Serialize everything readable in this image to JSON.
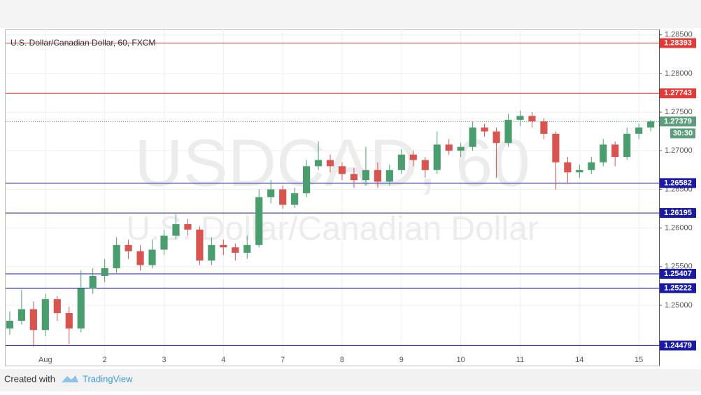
{
  "chart_data": {
    "type": "candlestick",
    "title": "U.S. Dollar/Canadian Dollar, 60, FXCM",
    "watermark": "USDCAD, 60",
    "watermark_subtitle": "U.S. Dollar/Canadian Dollar",
    "footer": {
      "prefix": "Created with",
      "brand": "TradingView"
    },
    "up_color": "#4a9e6e",
    "down_color": "#d9534f",
    "xlim": [
      -0.67,
      10.34
    ],
    "xticks": [
      {
        "value": 0,
        "label": "Aug"
      },
      {
        "value": 1,
        "label": "2"
      },
      {
        "value": 2,
        "label": "3"
      },
      {
        "value": 3,
        "label": "4"
      },
      {
        "value": 4,
        "label": "7"
      },
      {
        "value": 5,
        "label": "8"
      },
      {
        "value": 6,
        "label": "9"
      },
      {
        "value": 7,
        "label": "10"
      },
      {
        "value": 8,
        "label": "11"
      },
      {
        "value": 9,
        "label": "14"
      },
      {
        "value": 10,
        "label": "15"
      }
    ],
    "ylim": [
      1.2422,
      1.2857
    ],
    "yticks": [
      {
        "value": 1.285,
        "label": "1.28500"
      },
      {
        "value": 1.28,
        "label": "1.28000"
      },
      {
        "value": 1.275,
        "label": "1.27500"
      },
      {
        "value": 1.27,
        "label": "1.27000"
      },
      {
        "value": 1.265,
        "label": "1.26500"
      },
      {
        "value": 1.26,
        "label": "1.26000"
      },
      {
        "value": 1.255,
        "label": "1.25500"
      },
      {
        "value": 1.25,
        "label": "1.25000"
      }
    ],
    "levels": [
      {
        "value": 1.28393,
        "color": "#e53935"
      },
      {
        "value": 1.27743,
        "color": "#e53935"
      },
      {
        "value": 1.26582,
        "color": "#1a1aa6"
      },
      {
        "value": 1.26195,
        "color": "#1a1aa6"
      },
      {
        "value": 1.25407,
        "color": "#1a1aa6"
      },
      {
        "value": 1.25222,
        "color": "#1a1aa6"
      },
      {
        "value": 1.24479,
        "color": "#1a1aa6"
      }
    ],
    "current": {
      "value": 1.27379,
      "countdown": "30:30",
      "color": "#5a9e7c"
    },
    "x": [
      -0.6,
      -0.4,
      -0.2,
      0,
      0.2,
      0.4,
      0.6,
      0.8,
      1,
      1.2,
      1.4,
      1.6,
      1.8,
      2,
      2.2,
      2.4,
      2.6,
      2.8,
      3,
      3.2,
      3.4,
      3.6,
      3.8,
      4,
      4.2,
      4.4,
      4.6,
      4.8,
      5,
      5.2,
      5.4,
      5.6,
      5.8,
      6,
      6.2,
      6.4,
      6.6,
      6.8,
      7,
      7.2,
      7.4,
      7.6,
      7.8,
      8,
      8.2,
      8.4,
      8.6,
      8.8,
      9,
      9.2,
      9.4,
      9.6,
      9.8,
      10,
      10.2
    ],
    "candles": [
      [
        1.247,
        1.2492,
        1.2462,
        1.248
      ],
      [
        1.248,
        1.252,
        1.2475,
        1.2495
      ],
      [
        1.2495,
        1.2505,
        1.2446,
        1.2468
      ],
      [
        1.2468,
        1.2515,
        1.246,
        1.2508
      ],
      [
        1.2508,
        1.2512,
        1.248,
        1.249
      ],
      [
        1.249,
        1.2498,
        1.245,
        1.247
      ],
      [
        1.247,
        1.2545,
        1.2465,
        1.2522
      ],
      [
        1.2522,
        1.2548,
        1.2515,
        1.2538
      ],
      [
        1.2538,
        1.256,
        1.253,
        1.2548
      ],
      [
        1.2548,
        1.2588,
        1.2542,
        1.2578
      ],
      [
        1.2578,
        1.2585,
        1.256,
        1.257
      ],
      [
        1.257,
        1.2578,
        1.2545,
        1.2552
      ],
      [
        1.2552,
        1.2585,
        1.2548,
        1.2572
      ],
      [
        1.2572,
        1.2598,
        1.2565,
        1.259
      ],
      [
        1.259,
        1.2618,
        1.2585,
        1.2605
      ],
      [
        1.2605,
        1.2612,
        1.259,
        1.2598
      ],
      [
        1.2598,
        1.2602,
        1.2552,
        1.2558
      ],
      [
        1.2558,
        1.2588,
        1.2552,
        1.2578
      ],
      [
        1.2578,
        1.2585,
        1.2565,
        1.2575
      ],
      [
        1.2575,
        1.258,
        1.2558,
        1.2568
      ],
      [
        1.2568,
        1.259,
        1.256,
        1.2578
      ],
      [
        1.2578,
        1.265,
        1.2575,
        1.264
      ],
      [
        1.264,
        1.2662,
        1.2632,
        1.265
      ],
      [
        1.265,
        1.2655,
        1.2625,
        1.263
      ],
      [
        1.263,
        1.2652,
        1.2626,
        1.2645
      ],
      [
        1.2645,
        1.2688,
        1.264,
        1.268
      ],
      [
        1.268,
        1.2712,
        1.2675,
        1.2688
      ],
      [
        1.2688,
        1.2695,
        1.2672,
        1.268
      ],
      [
        1.268,
        1.2685,
        1.2662,
        1.267
      ],
      [
        1.267,
        1.2678,
        1.2652,
        1.2662
      ],
      [
        1.2662,
        1.2705,
        1.2655,
        1.2675
      ],
      [
        1.2675,
        1.2685,
        1.2652,
        1.266
      ],
      [
        1.266,
        1.2682,
        1.2655,
        1.2675
      ],
      [
        1.2675,
        1.2702,
        1.267,
        1.2695
      ],
      [
        1.2695,
        1.27,
        1.268,
        1.2688
      ],
      [
        1.2688,
        1.2692,
        1.2665,
        1.2675
      ],
      [
        1.2675,
        1.2725,
        1.267,
        1.2708
      ],
      [
        1.2708,
        1.2715,
        1.2695,
        1.27
      ],
      [
        1.27,
        1.271,
        1.2692,
        1.2705
      ],
      [
        1.2705,
        1.2738,
        1.27,
        1.273
      ],
      [
        1.273,
        1.2735,
        1.2718,
        1.2725
      ],
      [
        1.2725,
        1.273,
        1.2665,
        1.271
      ],
      [
        1.271,
        1.2748,
        1.2705,
        1.274
      ],
      [
        1.274,
        1.2752,
        1.2732,
        1.2745
      ],
      [
        1.2745,
        1.275,
        1.273,
        1.2738
      ],
      [
        1.2738,
        1.2742,
        1.2715,
        1.2722
      ],
      [
        1.2722,
        1.2725,
        1.265,
        1.2685
      ],
      [
        1.2685,
        1.2692,
        1.2658,
        1.2672
      ],
      [
        1.2672,
        1.2682,
        1.2665,
        1.2675
      ],
      [
        1.2675,
        1.2692,
        1.267,
        1.2685
      ],
      [
        1.2685,
        1.2715,
        1.268,
        1.2708
      ],
      [
        1.2708,
        1.2712,
        1.268,
        1.2692
      ],
      [
        1.2692,
        1.273,
        1.2688,
        1.2722
      ],
      [
        1.2722,
        1.2735,
        1.2715,
        1.273
      ],
      [
        1.273,
        1.274,
        1.2725,
        1.27379
      ]
    ]
  }
}
